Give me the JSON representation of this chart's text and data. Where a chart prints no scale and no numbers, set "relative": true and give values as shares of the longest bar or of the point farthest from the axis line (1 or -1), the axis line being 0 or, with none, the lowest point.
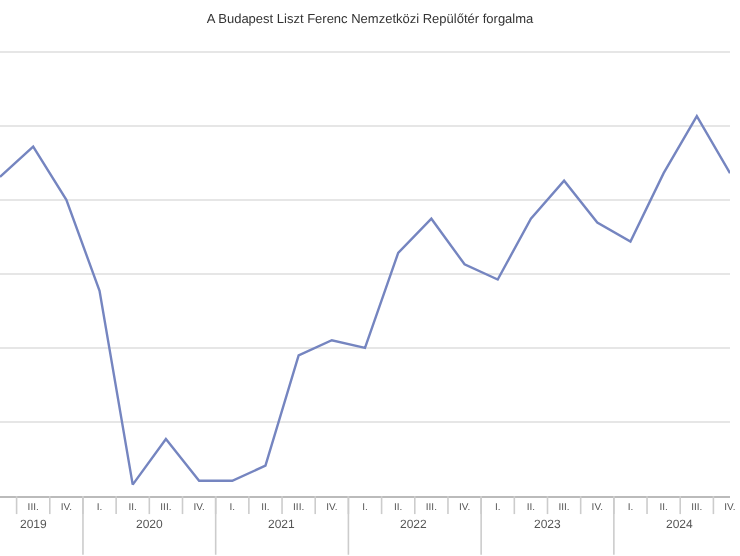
{
  "chart_data": {
    "type": "line",
    "title": "A Budapest Liszt Ferenc Nemzetközi Repülőtér forgalma",
    "relative": true,
    "grid": "y",
    "legend": false,
    "marker": "none",
    "line_style": "solid",
    "categories": [
      null,
      "III.",
      "IV.",
      "I.",
      "II.",
      "III.",
      "IV.",
      "I.",
      "II.",
      "III.",
      "IV.",
      "I.",
      "II.",
      "III.",
      "IV.",
      "I.",
      "II.",
      "III.",
      "IV.",
      "I.",
      "II.",
      "III.",
      "IV."
    ],
    "annotations": [
      "2019",
      "2020",
      "2021",
      "2022",
      "2023",
      "2024"
    ],
    "series": [
      {
        "color": "#7585c0",
        "values": [
          0.84,
          0.92,
          0.78,
          0.54,
          0.03,
          0.15,
          0.04,
          0.04,
          0.08,
          0.37,
          0.41,
          0.39,
          0.64,
          0.73,
          0.61,
          0.57,
          0.73,
          0.83,
          0.72,
          0.67,
          0.85,
          1,
          0.85
        ]
      }
    ]
  }
}
